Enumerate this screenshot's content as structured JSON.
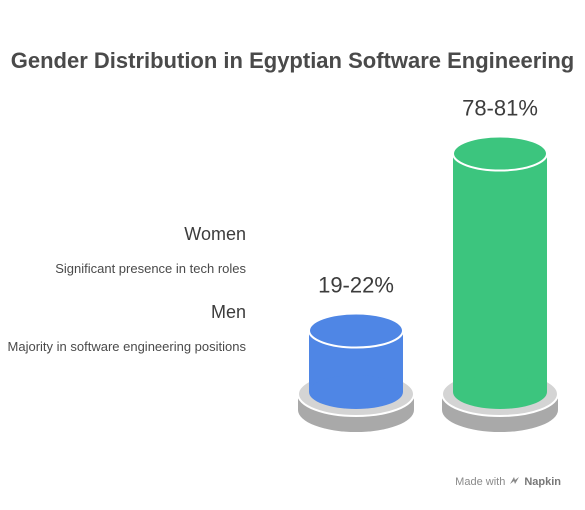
{
  "chart_data": {
    "type": "bar",
    "title": "Gender Distribution in Egyptian Software Engineering",
    "categories": [
      "Women",
      "Men"
    ],
    "descriptions": [
      "Significant presence in tech roles",
      "Majority in software engineering positions"
    ],
    "ranges": [
      [
        19,
        22
      ],
      [
        78,
        81
      ]
    ],
    "value_labels": [
      "19-22%",
      "78-81%"
    ],
    "unit": "%",
    "colors": [
      "#4f86e5",
      "#3cc57e"
    ]
  },
  "footer": {
    "made_with": "Made with",
    "brand": "Napkin"
  }
}
